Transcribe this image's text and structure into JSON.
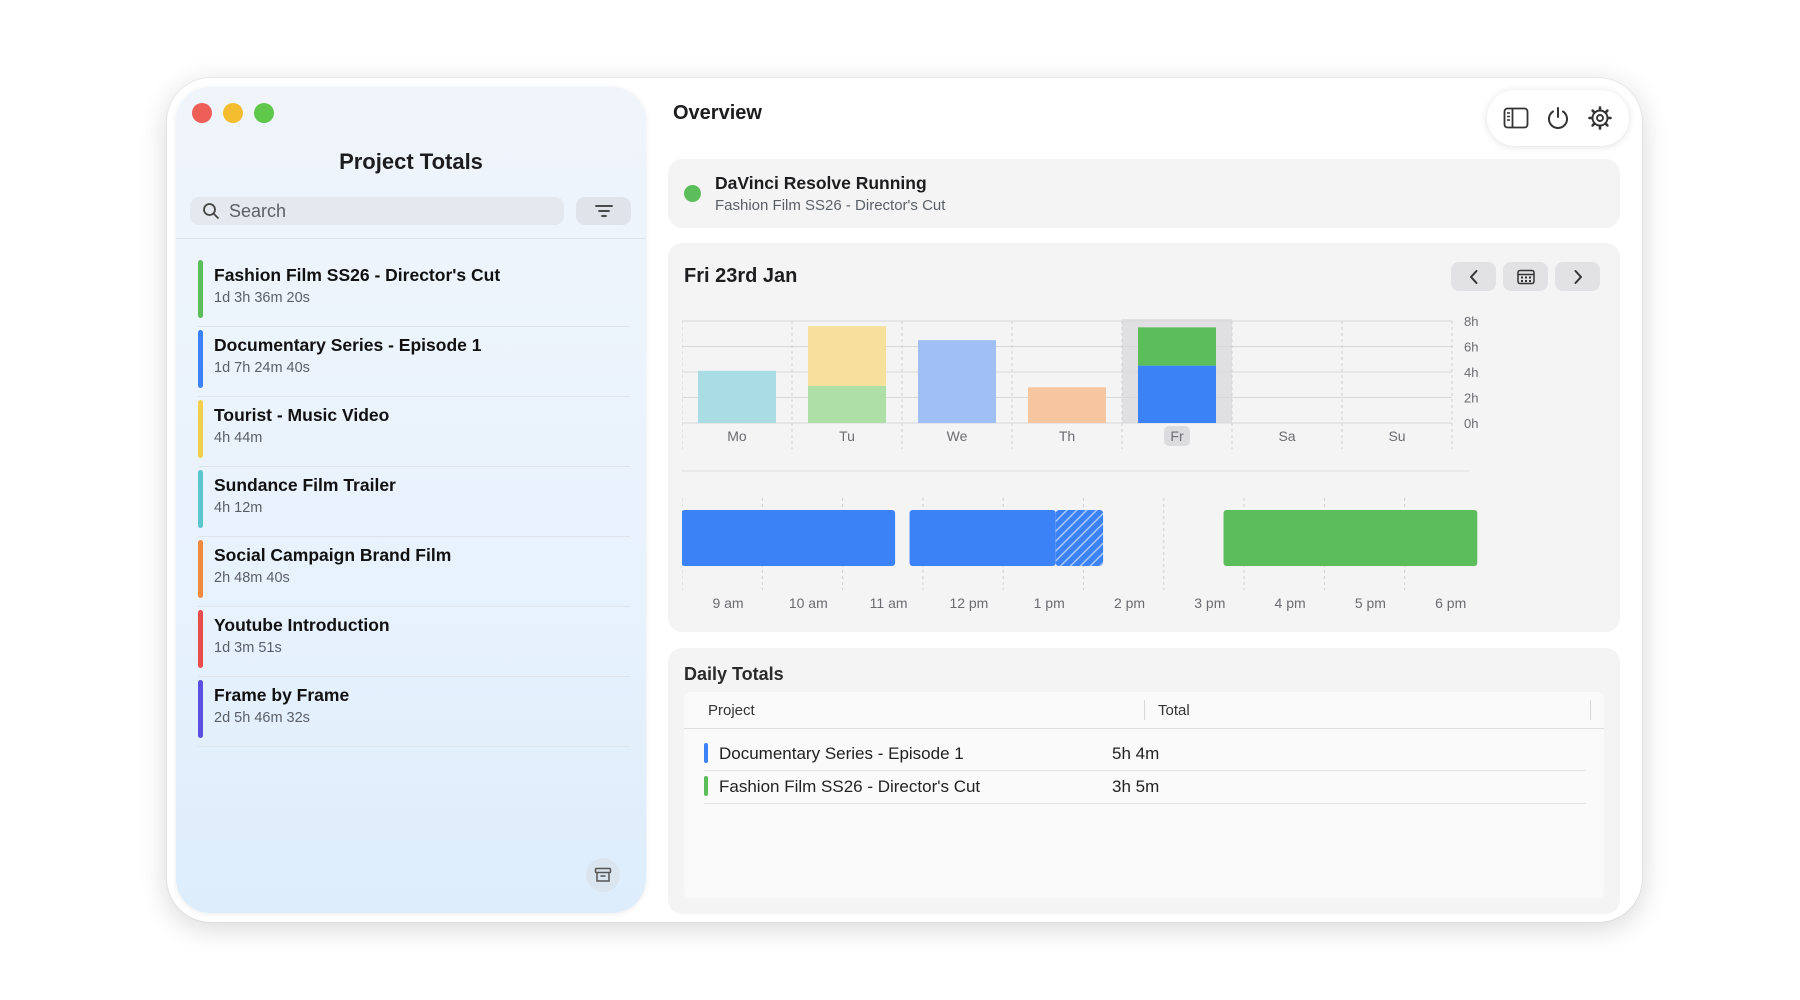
{
  "sidebar": {
    "title": "Project Totals",
    "search_placeholder": "Search",
    "projects": [
      {
        "name": "Fashion Film SS26 - Director's Cut",
        "duration": "1d 3h 36m 20s",
        "color": "#5cbd5b"
      },
      {
        "name": "Documentary Series - Episode 1",
        "duration": "1d 7h 24m 40s",
        "color": "#3b82f6"
      },
      {
        "name": "Tourist - Music Video",
        "duration": "4h 44m",
        "color": "#f4cf4a"
      },
      {
        "name": "Sundance Film Trailer",
        "duration": "4h 12m",
        "color": "#5cc6cf"
      },
      {
        "name": "Social Campaign Brand Film",
        "duration": "2h 48m 40s",
        "color": "#f08a3c"
      },
      {
        "name": "Youtube Introduction",
        "duration": "1d 3m 51s",
        "color": "#ea4b4b"
      },
      {
        "name": "Frame by Frame",
        "duration": "2d 5h 46m 32s",
        "color": "#5a4fe0"
      }
    ]
  },
  "main": {
    "title": "Overview",
    "status": {
      "title": "DaVinci Resolve Running",
      "subtitle": "Fashion Film SS26 - Director's Cut"
    },
    "date": "Fri 23rd Jan"
  },
  "chart_data": [
    {
      "type": "bar",
      "stacked": true,
      "categories": [
        "Mo",
        "Tu",
        "We",
        "Th",
        "Fr",
        "Sa",
        "Su"
      ],
      "selected": "Fr",
      "ylim": [
        0,
        8
      ],
      "y_ticks": [
        "8h",
        "6h",
        "4h",
        "2h",
        "0h"
      ],
      "series": [
        {
          "segments": [
            {
              "day": "Mo",
              "value": 4.1,
              "color": "#aadde3"
            },
            {
              "day": "Tu",
              "value": 2.9,
              "color": "#addfa6"
            },
            {
              "day": "Tu",
              "value": 4.7,
              "color": "#f7e09b",
              "stack_on": 2.9
            },
            {
              "day": "We",
              "value": 6.5,
              "color": "#9fbff5"
            },
            {
              "day": "Th",
              "value": 2.8,
              "color": "#f5c6a0"
            },
            {
              "day": "Fr",
              "value": 4.5,
              "color": "#3b82f6"
            },
            {
              "day": "Fr",
              "value": 3.0,
              "color": "#5cbd5b",
              "stack_on": 4.5
            }
          ]
        }
      ]
    },
    {
      "type": "timeline",
      "x_ticks": [
        "9 am",
        "10 am",
        "11 am",
        "12 pm",
        "1 pm",
        "2 pm",
        "3 pm",
        "4 pm",
        "5 pm",
        "6 pm"
      ],
      "blocks": [
        {
          "start": 8.67,
          "end": 11.33,
          "color": "#3b82f6"
        },
        {
          "start": 11.51,
          "end": 13.33,
          "color": "#3b82f6"
        },
        {
          "start": 13.33,
          "end": 13.92,
          "color": "#3b82f6",
          "pattern": "hatched"
        },
        {
          "start": 15.42,
          "end": 18.58,
          "color": "#5cbd5b"
        }
      ]
    }
  ],
  "daily_totals": {
    "title": "Daily Totals",
    "columns": [
      "Project",
      "Total"
    ],
    "rows": [
      {
        "project": "Documentary Series - Episode 1",
        "total": "5h 4m",
        "color": "#3b82f6"
      },
      {
        "project": "Fashion Film SS26 - Director's Cut",
        "total": "3h 5m",
        "color": "#5cbd5b"
      }
    ]
  }
}
